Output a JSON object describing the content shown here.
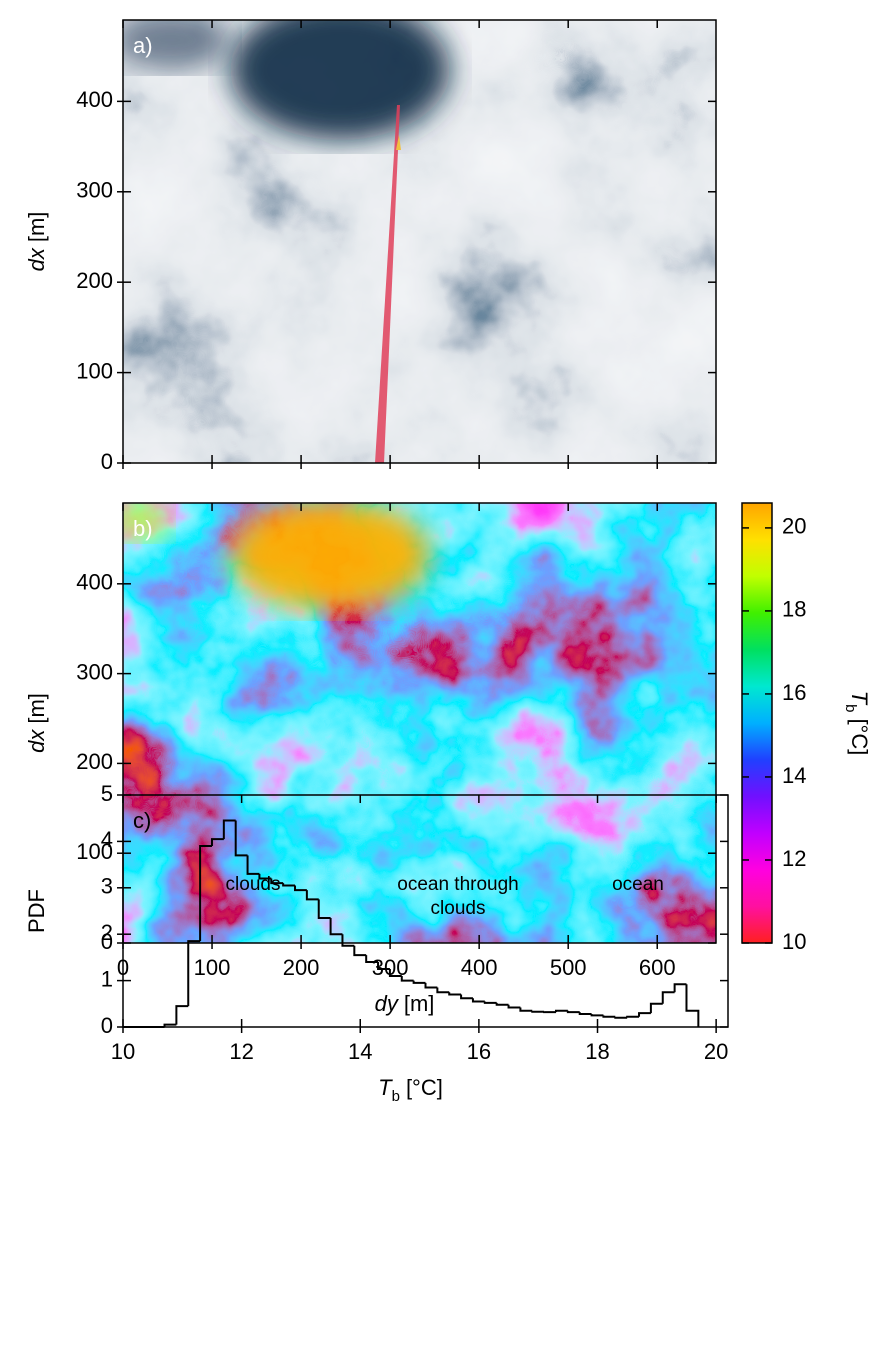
{
  "chart_data": [
    {
      "type": "image",
      "label": "a)",
      "ylabel": {
        "var": "dx",
        "unit": "[m]"
      },
      "xlim": [
        0,
        666
      ],
      "ylim": [
        0,
        490
      ],
      "xticks": [
        0,
        100,
        200,
        300,
        400,
        500,
        600
      ],
      "yticks": [
        0,
        100,
        200,
        300,
        400
      ]
    },
    {
      "type": "heatmap",
      "label": "b)",
      "xlabel": {
        "var": "dy",
        "unit": "[m]"
      },
      "ylabel": {
        "var": "dx",
        "unit": "[m]"
      },
      "xlim": [
        0,
        666
      ],
      "ylim": [
        0,
        490
      ],
      "xticks": [
        0,
        100,
        200,
        300,
        400,
        500,
        600
      ],
      "yticks": [
        0,
        100,
        200,
        300,
        400
      ],
      "colorbar": {
        "label": {
          "var": "T",
          "sub": "b",
          "unit": "[°C]"
        },
        "lim": [
          10,
          20.6
        ],
        "ticks": [
          10,
          12,
          14,
          16,
          18,
          20
        ],
        "colors": [
          "#ff2020",
          "#ff10a0",
          "#ff00e0",
          "#c000ff",
          "#7010ff",
          "#2040ff",
          "#00b0ff",
          "#00e8d0",
          "#00e060",
          "#40f000",
          "#c0ff00",
          "#ffe000",
          "#ffa500"
        ]
      }
    },
    {
      "type": "histogram",
      "label": "c)",
      "ylabel": "PDF",
      "xlabel": {
        "var": "T",
        "sub": "b",
        "unit": "[°C]"
      },
      "xlim": [
        10,
        20.2
      ],
      "ylim": [
        0,
        5
      ],
      "xticks": [
        10,
        12,
        14,
        16,
        18,
        20
      ],
      "yticks": [
        0,
        1,
        2,
        3,
        4,
        5
      ],
      "color": "#000000",
      "bins": [
        10.7,
        10.9,
        11.1,
        11.3,
        11.5,
        11.7,
        11.9,
        12.1,
        12.3,
        12.5,
        12.7,
        12.9,
        13.1,
        13.3,
        13.5,
        13.7,
        13.9,
        14.1,
        14.3,
        14.5,
        14.7,
        14.9,
        15.1,
        15.3,
        15.5,
        15.7,
        15.9,
        16.1,
        16.3,
        16.5,
        16.7,
        16.9,
        17.1,
        17.3,
        17.5,
        17.7,
        17.9,
        18.1,
        18.3,
        18.5,
        18.7,
        18.9,
        19.1,
        19.3,
        19.5,
        19.7
      ],
      "values": [
        0.05,
        0.45,
        1.85,
        3.9,
        4.05,
        4.45,
        3.7,
        3.3,
        3.2,
        3.1,
        3.05,
        2.95,
        2.75,
        2.35,
        2.0,
        1.75,
        1.55,
        1.4,
        1.25,
        1.1,
        1.0,
        0.95,
        0.85,
        0.75,
        0.7,
        0.62,
        0.55,
        0.52,
        0.48,
        0.42,
        0.35,
        0.33,
        0.32,
        0.35,
        0.32,
        0.28,
        0.25,
        0.22,
        0.2,
        0.22,
        0.3,
        0.5,
        0.75,
        0.92,
        0.35
      ],
      "annotations": [
        [
          "clouds"
        ],
        [
          "ocean through",
          "clouds"
        ],
        [
          "ocean"
        ]
      ]
    }
  ]
}
